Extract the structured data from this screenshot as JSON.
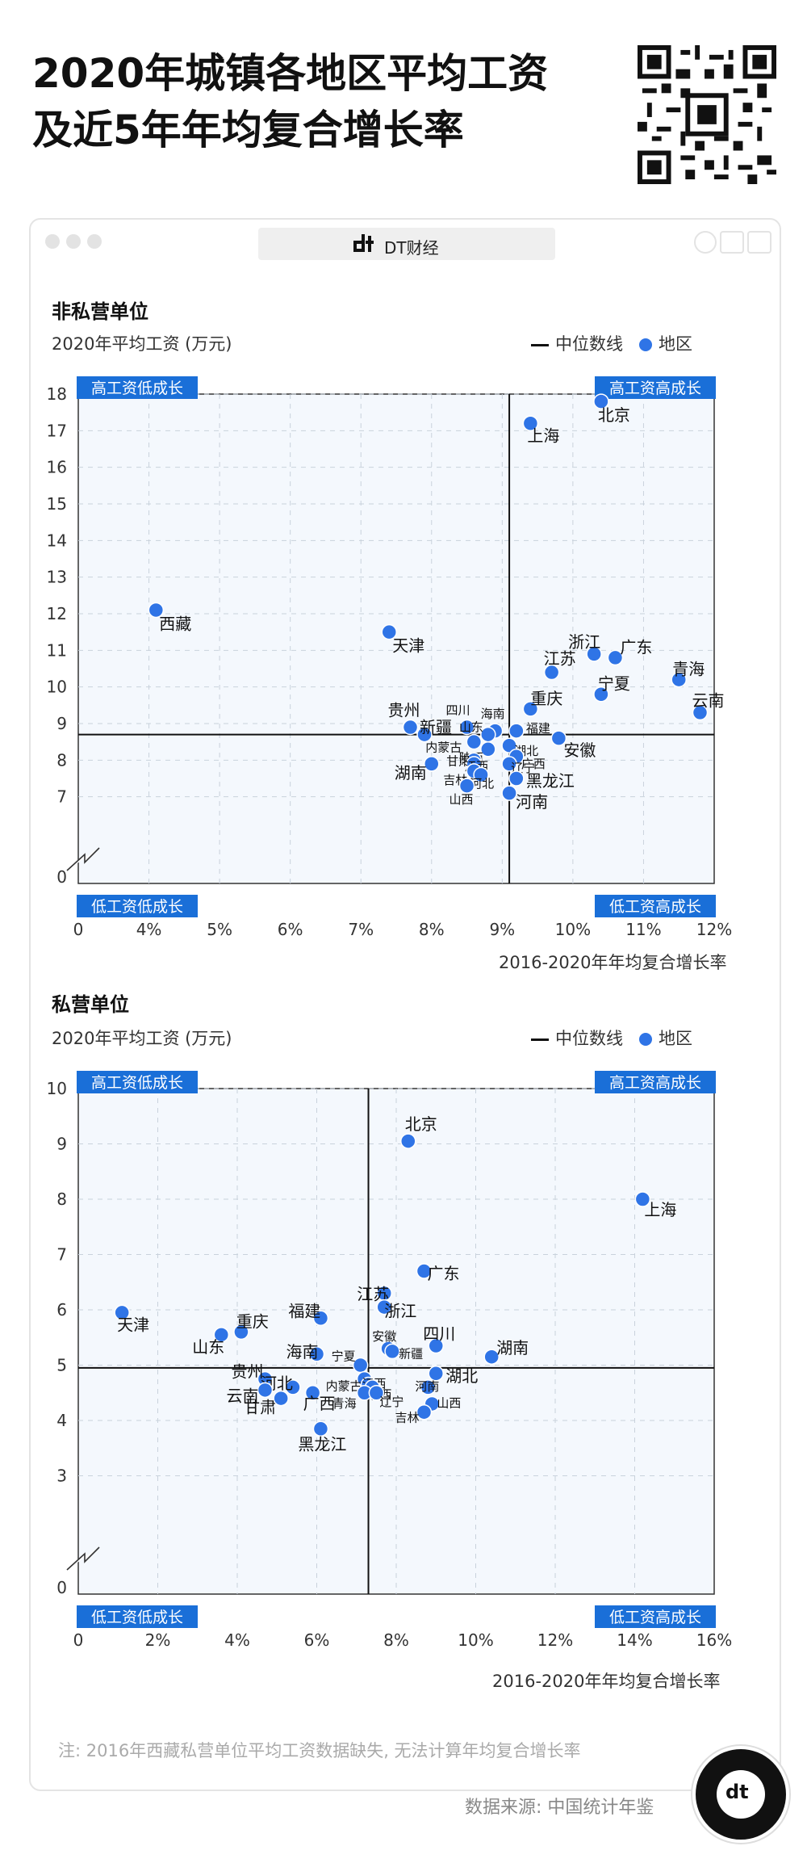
{
  "title_line1": "2020年城镇各地区平均工资",
  "title_line2": "及近5年年均复合增长率",
  "window": {
    "brand": "DT财经"
  },
  "legend": {
    "median": "中位数线",
    "region": "地区"
  },
  "colors": {
    "point": "#2f74e6",
    "quadrant_tag": "#1a6fd8",
    "plot_bg": "#f4f8fd",
    "grid": "#c9d2dc"
  },
  "quadrants": {
    "tl": "高工资低成长",
    "tr": "高工资高成长",
    "bl": "低工资低成长",
    "br": "低工资高成长"
  },
  "note": "注: 2016年西藏私营单位平均工资数据缺失, 无法计算年均复合增长率",
  "source": "数据来源: 中国统计年鉴",
  "chart_data": [
    {
      "type": "scatter",
      "title": "非私营单位",
      "ylabel": "2020年平均工资 (万元)",
      "xlabel": "2016-2020年年均复合增长率",
      "x_ticks": [
        "0",
        "4%",
        "5%",
        "6%",
        "7%",
        "8%",
        "9%",
        "10%",
        "11%",
        "12%"
      ],
      "y_ticks": [
        "0",
        "7",
        "8",
        "9",
        "10",
        "11",
        "12",
        "13",
        "14",
        "15",
        "16",
        "17",
        "18"
      ],
      "xlim": [
        3,
        12
      ],
      "ylim": [
        6,
        18
      ],
      "axis_break": true,
      "median": {
        "x": 9.1,
        "y": 8.7
      },
      "points": [
        {
          "name": "北京",
          "x": 10.4,
          "y": 17.8
        },
        {
          "name": "上海",
          "x": 9.4,
          "y": 17.2
        },
        {
          "name": "西藏",
          "x": 4.1,
          "y": 12.1
        },
        {
          "name": "天津",
          "x": 7.4,
          "y": 11.5
        },
        {
          "name": "浙江",
          "x": 10.3,
          "y": 10.9
        },
        {
          "name": "广东",
          "x": 10.6,
          "y": 10.8
        },
        {
          "name": "江苏",
          "x": 9.7,
          "y": 10.4
        },
        {
          "name": "青海",
          "x": 11.5,
          "y": 10.2
        },
        {
          "name": "宁夏",
          "x": 10.4,
          "y": 9.8
        },
        {
          "name": "重庆",
          "x": 9.4,
          "y": 9.4
        },
        {
          "name": "云南",
          "x": 11.8,
          "y": 9.3
        },
        {
          "name": "贵州",
          "x": 7.7,
          "y": 8.9
        },
        {
          "name": "新疆",
          "x": 7.9,
          "y": 8.7
        },
        {
          "name": "四川",
          "x": 8.5,
          "y": 8.9
        },
        {
          "name": "海南",
          "x": 8.9,
          "y": 8.8
        },
        {
          "name": "山东",
          "x": 8.8,
          "y": 8.7
        },
        {
          "name": "福建",
          "x": 9.2,
          "y": 8.8
        },
        {
          "name": "内蒙古",
          "x": 8.6,
          "y": 8.5
        },
        {
          "name": "湖北",
          "x": 9.1,
          "y": 8.4
        },
        {
          "name": "陕西",
          "x": 8.8,
          "y": 8.3
        },
        {
          "name": "安徽",
          "x": 9.8,
          "y": 8.6
        },
        {
          "name": "广西",
          "x": 9.2,
          "y": 8.1
        },
        {
          "name": "甘肃",
          "x": 8.6,
          "y": 8.0
        },
        {
          "name": "江西",
          "x": 8.6,
          "y": 7.9
        },
        {
          "name": "湖南",
          "x": 8.0,
          "y": 7.9
        },
        {
          "name": "辽宁",
          "x": 9.1,
          "y": 7.9
        },
        {
          "name": "吉林",
          "x": 8.6,
          "y": 7.7
        },
        {
          "name": "河北",
          "x": 8.7,
          "y": 7.6
        },
        {
          "name": "黑龙江",
          "x": 9.2,
          "y": 7.5
        },
        {
          "name": "山西",
          "x": 8.5,
          "y": 7.3
        },
        {
          "name": "河南",
          "x": 9.1,
          "y": 7.1
        }
      ]
    },
    {
      "type": "scatter",
      "title": "私营单位",
      "ylabel": "2020年平均工资 (万元)",
      "xlabel": "2016-2020年年均复合增长率",
      "x_ticks": [
        "0",
        "2%",
        "4%",
        "6%",
        "8%",
        "10%",
        "12%",
        "14%",
        "16%"
      ],
      "y_ticks": [
        "0",
        "3",
        "4",
        "5",
        "6",
        "7",
        "8",
        "9",
        "10"
      ],
      "xlim": [
        0,
        16
      ],
      "ylim": [
        2,
        10
      ],
      "axis_break": true,
      "median": {
        "x": 7.3,
        "y": 4.95
      },
      "points": [
        {
          "name": "北京",
          "x": 8.3,
          "y": 9.05
        },
        {
          "name": "上海",
          "x": 14.2,
          "y": 8.0
        },
        {
          "name": "广东",
          "x": 8.7,
          "y": 6.7
        },
        {
          "name": "江苏",
          "x": 7.7,
          "y": 6.3
        },
        {
          "name": "浙江",
          "x": 7.7,
          "y": 6.05
        },
        {
          "name": "天津",
          "x": 1.1,
          "y": 5.95
        },
        {
          "name": "福建",
          "x": 6.1,
          "y": 5.85
        },
        {
          "name": "重庆",
          "x": 4.1,
          "y": 5.6
        },
        {
          "name": "山东",
          "x": 3.6,
          "y": 5.55
        },
        {
          "name": "四川",
          "x": 9.0,
          "y": 5.35
        },
        {
          "name": "安徽",
          "x": 7.8,
          "y": 5.3
        },
        {
          "name": "新疆",
          "x": 7.9,
          "y": 5.25
        },
        {
          "name": "湖南",
          "x": 10.4,
          "y": 5.15
        },
        {
          "name": "海南",
          "x": 6.0,
          "y": 5.2
        },
        {
          "name": "宁夏",
          "x": 7.1,
          "y": 5.0
        },
        {
          "name": "贵州",
          "x": 4.7,
          "y": 4.75
        },
        {
          "name": "内蒙古",
          "x": 7.2,
          "y": 4.75
        },
        {
          "name": "江西",
          "x": 7.3,
          "y": 4.65
        },
        {
          "name": "湖北",
          "x": 9.0,
          "y": 4.85
        },
        {
          "name": "陕西",
          "x": 7.4,
          "y": 4.6
        },
        {
          "name": "河北",
          "x": 5.4,
          "y": 4.6
        },
        {
          "name": "河南",
          "x": 8.8,
          "y": 4.6
        },
        {
          "name": "云南",
          "x": 4.7,
          "y": 4.55
        },
        {
          "name": "广西",
          "x": 5.9,
          "y": 4.5
        },
        {
          "name": "青海",
          "x": 7.2,
          "y": 4.5
        },
        {
          "name": "辽宁",
          "x": 7.5,
          "y": 4.5
        },
        {
          "name": "甘肃",
          "x": 5.1,
          "y": 4.4
        },
        {
          "name": "山西",
          "x": 8.9,
          "y": 4.3
        },
        {
          "name": "吉林",
          "x": 8.7,
          "y": 4.15
        },
        {
          "name": "黑龙江",
          "x": 6.1,
          "y": 3.85
        }
      ]
    }
  ]
}
